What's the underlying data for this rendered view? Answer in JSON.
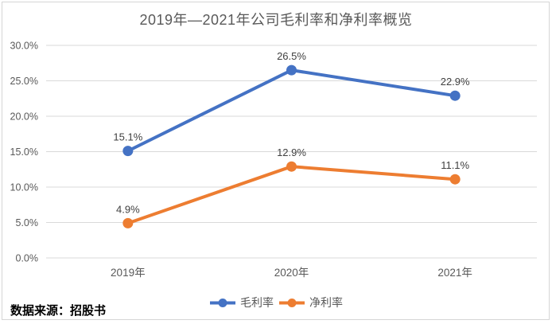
{
  "page": {
    "source_note": "数据来源：招股书"
  },
  "chart_data": {
    "type": "line",
    "title": "2019年—2021年公司毛利率和净利率概览",
    "categories": [
      "2019年",
      "2020年",
      "2021年"
    ],
    "series": [
      {
        "name": "毛利率",
        "color": "#4472C4",
        "values": [
          15.1,
          26.5,
          22.9
        ],
        "labels": [
          "15.1%",
          "26.5%",
          "22.9%"
        ]
      },
      {
        "name": "净利率",
        "color": "#ED7D31",
        "values": [
          4.9,
          12.9,
          11.1
        ],
        "labels": [
          "4.9%",
          "12.9%",
          "11.1%"
        ]
      }
    ],
    "y_axis": {
      "min": 0,
      "max": 30,
      "step": 5,
      "tick_labels": [
        "0.0%",
        "5.0%",
        "10.0%",
        "15.0%",
        "20.0%",
        "25.0%",
        "30.0%"
      ]
    },
    "legend_position": "bottom",
    "grid": true,
    "colors": {
      "gridline": "#d9d9d9",
      "frame_border": "#d6d6d6",
      "tick_text": "#595959",
      "title_text": "#595959",
      "data_label_text": "#404040",
      "legend_text": "#595959",
      "background": "#ffffff"
    }
  }
}
